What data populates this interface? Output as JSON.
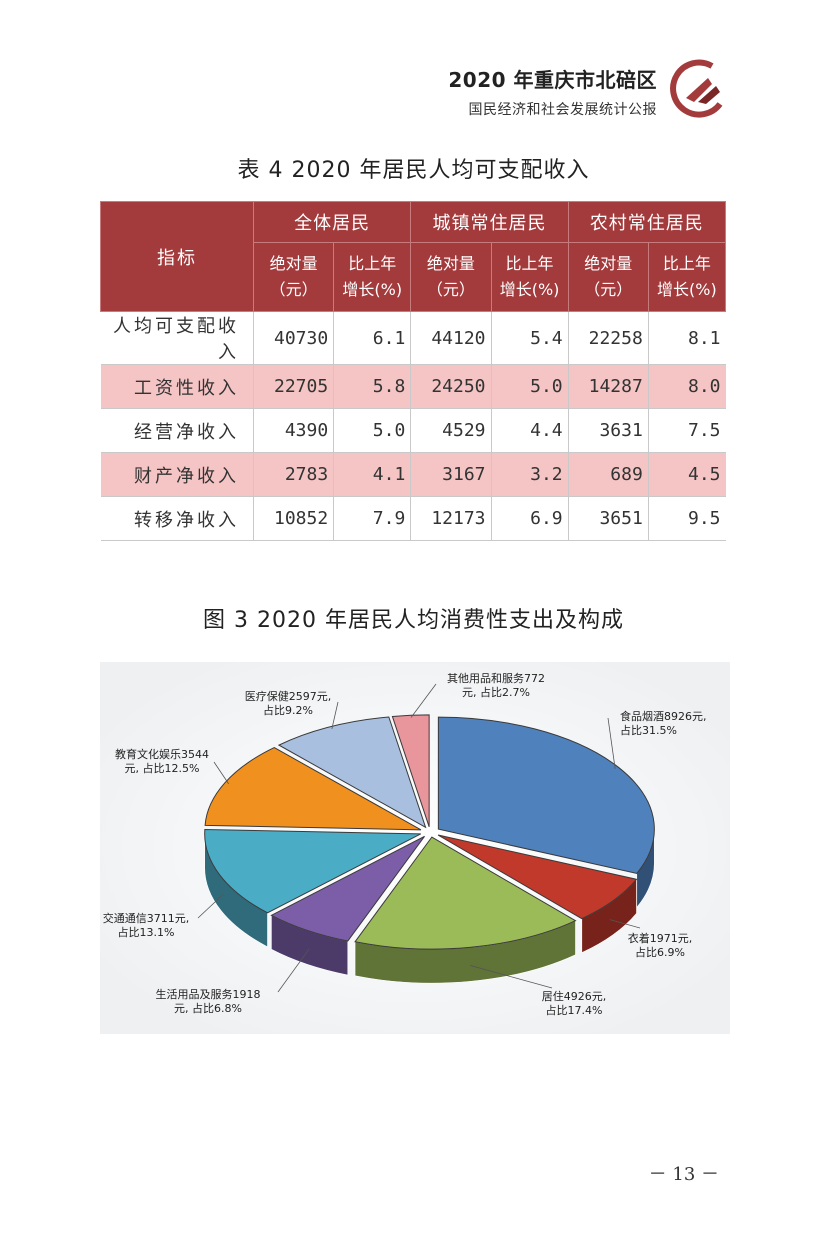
{
  "header": {
    "title": "2020 年重庆市北碚区",
    "subtitle": "国民经济和社会发展统计公报"
  },
  "table": {
    "title": "表 4  2020 年居民人均可支配收入",
    "index_header": "指标",
    "groups": [
      "全体居民",
      "城镇常住居民",
      "农村常住居民"
    ],
    "sub_abs_line1": "绝对量",
    "sub_abs_line2": "（元）",
    "sub_growth_line1": "比上年",
    "sub_growth_line2": "增长(%)",
    "rows": [
      {
        "label": "人均可支配收入",
        "values": [
          "40730",
          "6.1",
          "44120",
          "5.4",
          "22258",
          "8.1"
        ]
      },
      {
        "label": "工资性收入",
        "values": [
          "22705",
          "5.8",
          "24250",
          "5.0",
          "14287",
          "8.0"
        ]
      },
      {
        "label": "经营净收入",
        "values": [
          "4390",
          "5.0",
          "4529",
          "4.4",
          "3631",
          "7.5"
        ]
      },
      {
        "label": "财产净收入",
        "values": [
          "2783",
          "4.1",
          "3167",
          "3.2",
          "689",
          "4.5"
        ]
      },
      {
        "label": "转移净收入",
        "values": [
          "10852",
          "7.9",
          "12173",
          "6.9",
          "3651",
          "9.5"
        ]
      }
    ]
  },
  "chart_data": {
    "type": "pie",
    "title": "图 3  2020 年居民人均消费性支出及构成",
    "slices": [
      {
        "name": "食品烟酒",
        "value": 8926,
        "share": 31.5,
        "color": "#4f81bd",
        "label1": "食品烟酒8926元,",
        "label2": "占比31.5%"
      },
      {
        "name": "衣着",
        "value": 1971,
        "share": 6.9,
        "color": "#c0392b",
        "label1": "衣着1971元,",
        "label2": "占比6.9%"
      },
      {
        "name": "居住",
        "value": 4926,
        "share": 17.4,
        "color": "#9bbb59",
        "label1": "居住4926元,",
        "label2": "占比17.4%"
      },
      {
        "name": "生活用品及服务",
        "value": 1918,
        "share": 6.8,
        "color": "#7b5ea7",
        "label1": "生活用品及服务1918",
        "label2": "元, 占比6.8%"
      },
      {
        "name": "交通通信",
        "value": 3711,
        "share": 13.1,
        "color": "#4bacc6",
        "label1": "交通通信3711元,",
        "label2": "占比13.1%"
      },
      {
        "name": "教育文化娱乐",
        "value": 3544,
        "share": 12.5,
        "color": "#f0901e",
        "label1": "教育文化娱乐3544",
        "label2": "元, 占比12.5%"
      },
      {
        "name": "医疗保健",
        "value": 2597,
        "share": 9.2,
        "color": "#a8bfdf",
        "label1": "医疗保健2597元,",
        "label2": "占比9.2%"
      },
      {
        "name": "其他用品和服务",
        "value": 772,
        "share": 2.7,
        "color": "#e8959b",
        "label1": "其他用品和服务772",
        "label2": "元, 占比2.7%"
      }
    ]
  },
  "page": {
    "number": "－ 13 －"
  }
}
